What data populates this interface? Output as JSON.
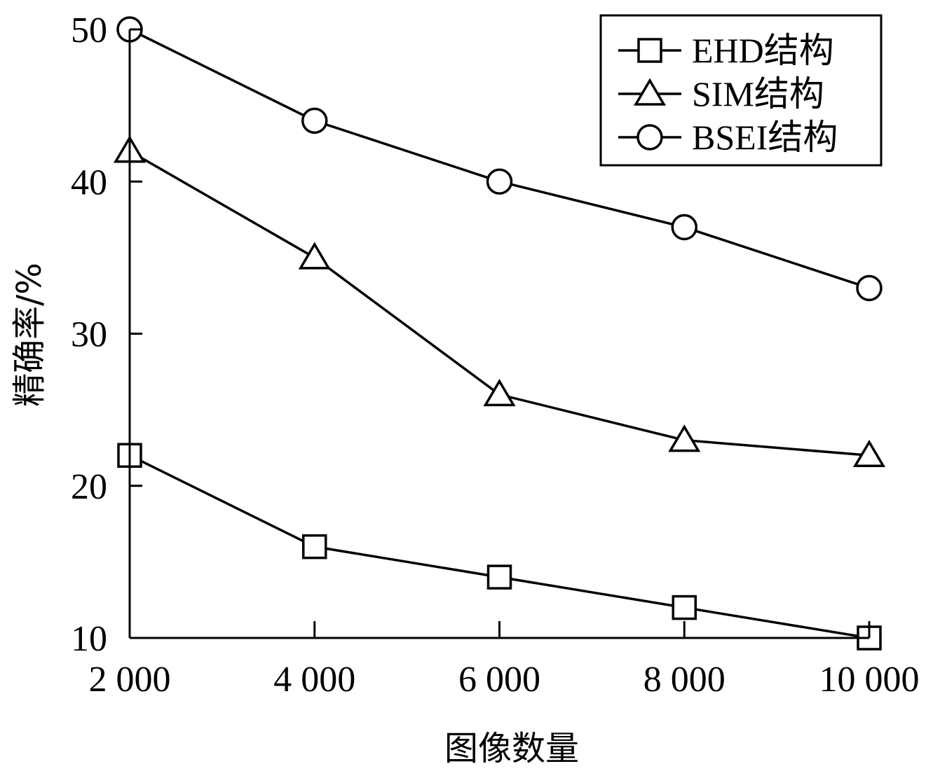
{
  "chart_data": {
    "type": "line",
    "xlabel": "图像数量",
    "ylabel": "精确率/%",
    "x": [
      2000,
      4000,
      6000,
      8000,
      10000
    ],
    "x_tick_labels": [
      "2 000",
      "4 000",
      "6 000",
      "8 000",
      "10 000"
    ],
    "ylim": [
      10,
      50
    ],
    "y_ticks": [
      10,
      20,
      30,
      40,
      50
    ],
    "grid": false,
    "legend_position": "top-right",
    "series": [
      {
        "name": "EHD结构",
        "marker": "square",
        "values": [
          22,
          16,
          14,
          12,
          10
        ]
      },
      {
        "name": "SIM结构",
        "marker": "triangle",
        "values": [
          42,
          35,
          26,
          23,
          22
        ]
      },
      {
        "name": "BSEI结构",
        "marker": "circle",
        "values": [
          50,
          44,
          40,
          37,
          33
        ]
      }
    ]
  }
}
